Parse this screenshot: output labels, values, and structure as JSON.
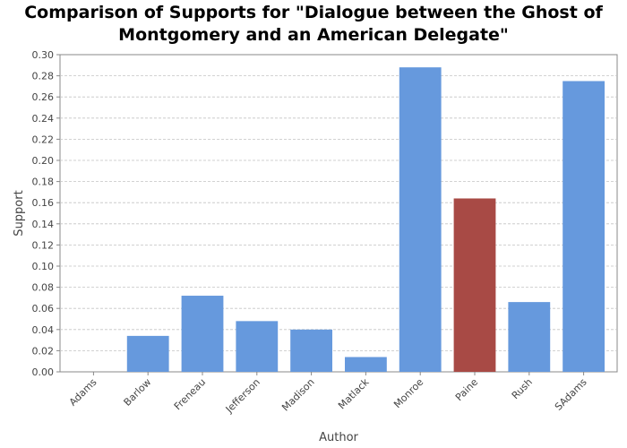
{
  "chart_data": {
    "type": "bar",
    "title_lines": [
      "Comparison of Supports for \"Dialogue between the Ghost of",
      "Montgomery and an American Delegate\""
    ],
    "xlabel": "Author",
    "ylabel": "Support",
    "ylim": [
      0,
      0.3
    ],
    "yticks": [
      "0.00",
      "0.02",
      "0.04",
      "0.06",
      "0.08",
      "0.10",
      "0.12",
      "0.14",
      "0.16",
      "0.18",
      "0.20",
      "0.22",
      "0.24",
      "0.26",
      "0.28",
      "0.30"
    ],
    "categories": [
      "Adams",
      "Barlow",
      "Freneau",
      "Jefferson",
      "Madison",
      "Matlack",
      "Monroe",
      "Paine",
      "Rush",
      "SAdams"
    ],
    "values": [
      0.0,
      0.034,
      0.072,
      0.048,
      0.04,
      0.014,
      0.288,
      0.164,
      0.066,
      0.275
    ],
    "highlight_category": "Paine",
    "grid": true,
    "colors": {
      "bar": "#6699dd",
      "highlight": "#a84a45",
      "grid": "#c4c4c4",
      "axis": "#888888"
    }
  }
}
